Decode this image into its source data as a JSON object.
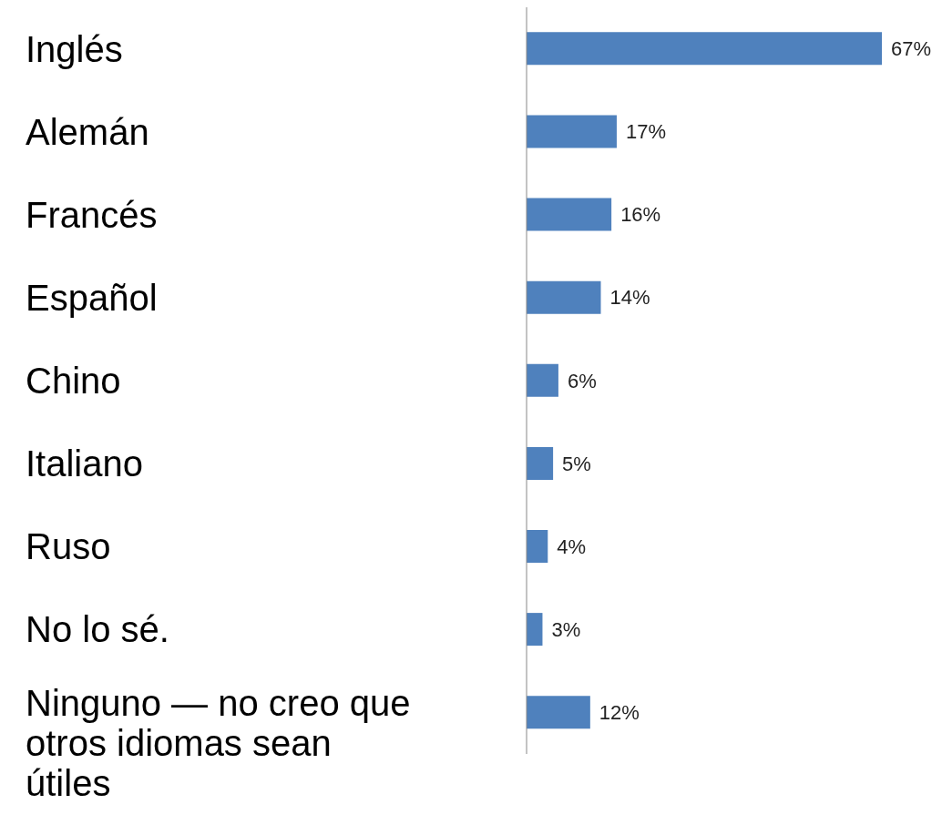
{
  "chart_data": {
    "type": "bar",
    "orientation": "horizontal",
    "categories": [
      "Inglés",
      "Alemán",
      "Francés",
      "Español",
      "Chino",
      "Italiano",
      "Ruso",
      "No lo sé.",
      "Ninguno — no creo que otros idiomas sean útiles"
    ],
    "values": [
      67,
      17,
      16,
      14,
      6,
      5,
      4,
      3,
      12
    ],
    "value_labels": [
      "67%",
      "17%",
      "16%",
      "14%",
      "6%",
      "5%",
      "4%",
      "3%",
      "12%"
    ],
    "color": "#4f81bd"
  }
}
